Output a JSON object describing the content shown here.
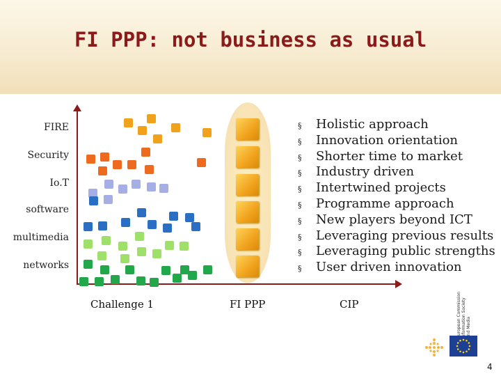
{
  "slide": {
    "title": "FI PPP: not business as usual",
    "page_number": "4"
  },
  "categories": [
    "FIRE",
    "Security",
    "Io.T",
    "software",
    "multimedia",
    "networks"
  ],
  "x_labels": [
    "Challenge 1",
    "FI PPP",
    "CIP"
  ],
  "bullets": [
    "Holistic approach",
    "Innovation orientation",
    "Shorter time to market",
    "Industry driven",
    "Intertwined projects",
    "Programme approach",
    "New players beyond ICT",
    "Leveraging previous results",
    "Leveraging public strengths",
    "User driven innovation"
  ],
  "bullet_mark": "§",
  "logo": {
    "ec_text_1": "European Commission",
    "ec_text_2": "Information Society and Media"
  },
  "colors": {
    "title": "#8b1a1a",
    "fire": "#f1a21c",
    "security": "#ee6a1e",
    "iot": "#a6aee6",
    "software": "#2a6fc4",
    "multimedia": "#9fe06a",
    "networks": "#22a84a"
  }
}
